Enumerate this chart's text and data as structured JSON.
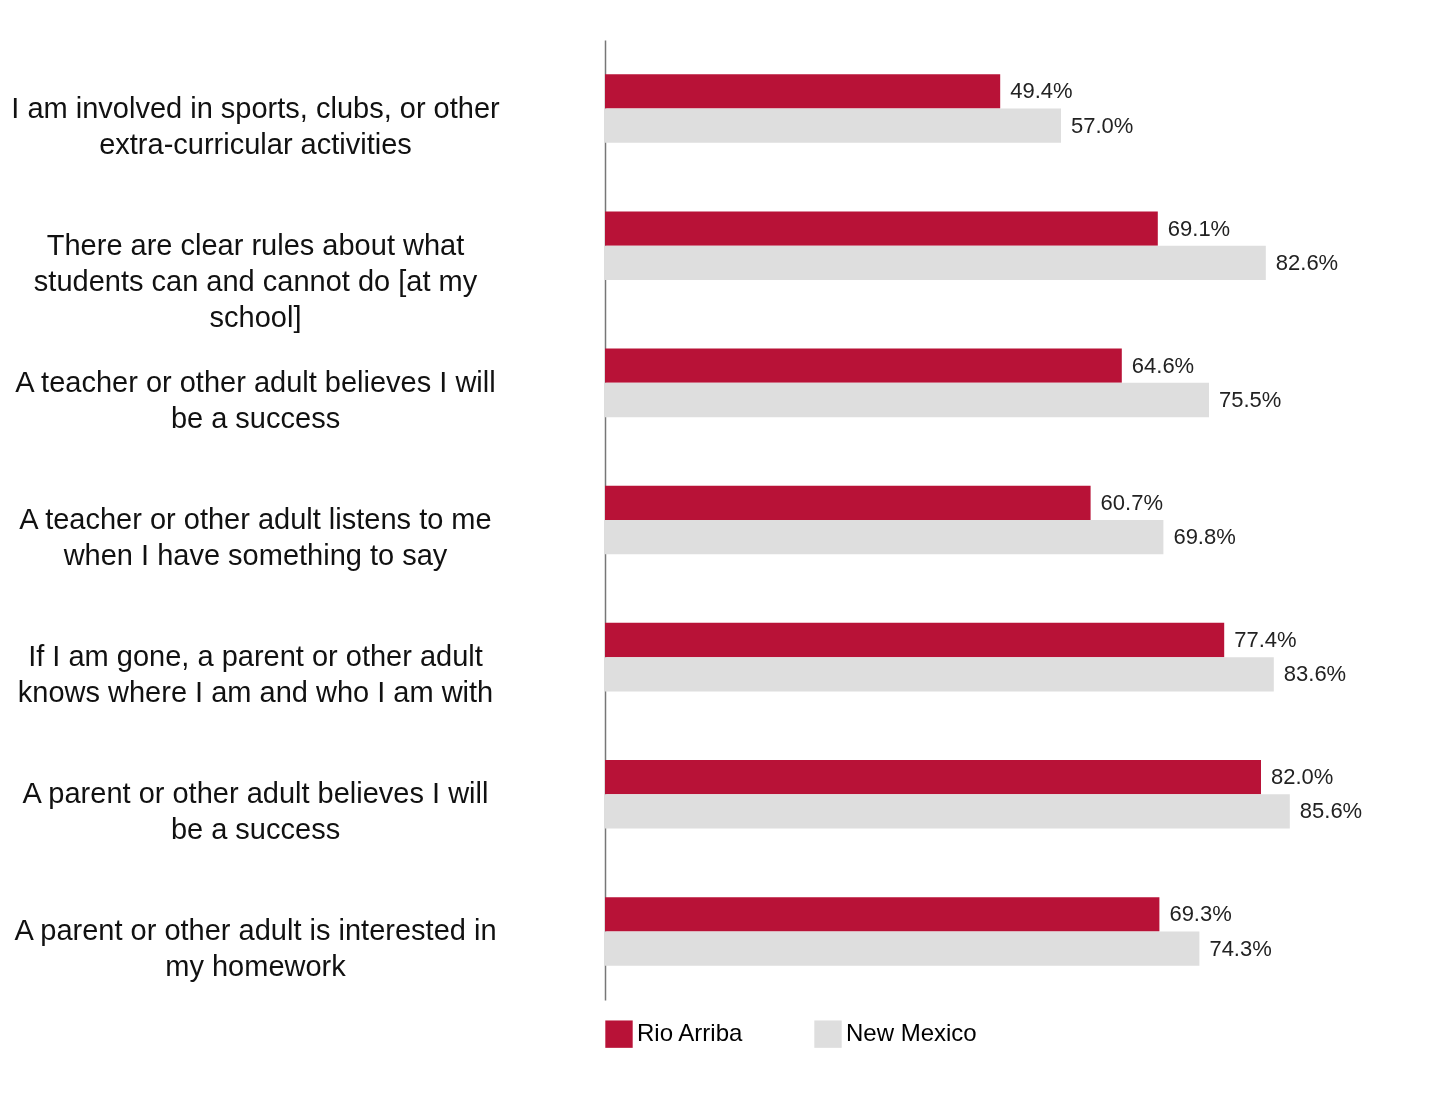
{
  "chart_data": {
    "type": "bar",
    "orientation": "horizontal",
    "categories": [
      "I am involved in sports, clubs, or other extra-curricular activities",
      "There are clear rules about what students can and cannot do [at my school]",
      "A teacher or other adult believes I will be a success",
      "A teacher or other adult listens to me when I have something to say",
      "If I am gone, a parent or other adult knows where I am and who I am with",
      "A parent or other adult believes I will be a success",
      "A parent or other adult is interested in my homework"
    ],
    "series": [
      {
        "name": "Rio Arriba",
        "color": "#b81237",
        "values": [
          49.4,
          69.1,
          64.6,
          60.7,
          77.4,
          82.0,
          69.3
        ],
        "value_labels": [
          "49.4%",
          "69.1%",
          "64.6%",
          "60.7%",
          "77.4%",
          "82.0%",
          "69.3%"
        ]
      },
      {
        "name": "New Mexico",
        "color": "#dedede",
        "values": [
          57.0,
          82.6,
          75.5,
          69.8,
          83.6,
          85.6,
          74.3
        ],
        "value_labels": [
          "57.0%",
          "82.6%",
          "75.5%",
          "69.8%",
          "83.6%",
          "85.6%",
          "74.3%"
        ]
      }
    ],
    "legend": "bottom",
    "grid": false
  }
}
